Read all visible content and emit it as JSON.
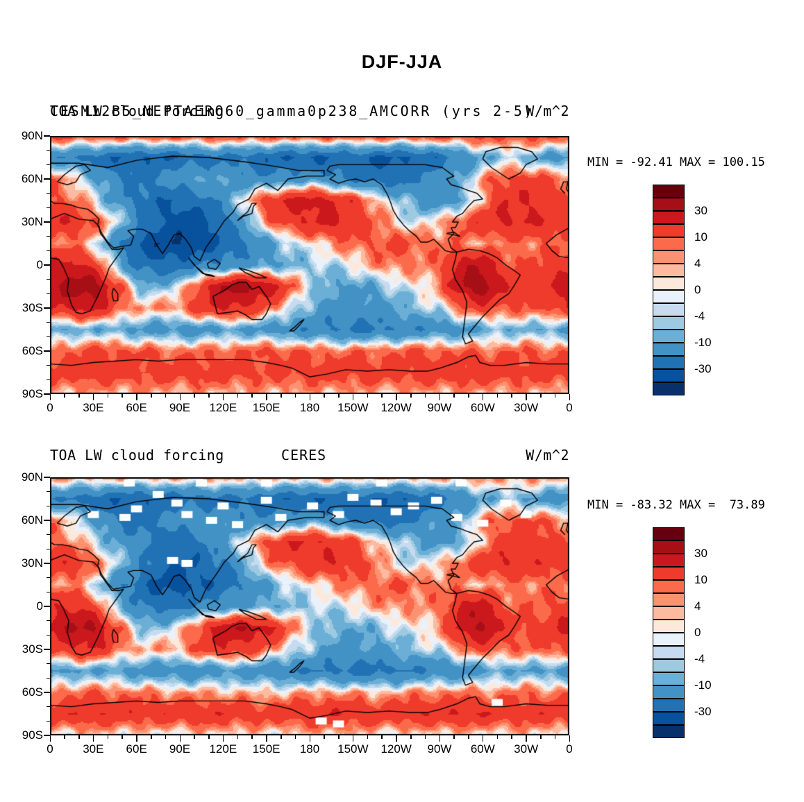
{
  "figure": {
    "title": "DJF-JJA"
  },
  "panels": [
    {
      "variable": "TOA LW cloud forcing",
      "case_title": "CESM12B5_NEPTAERO60_gamma0p238_AMCORR (yrs 2-5)",
      "units": "W/m^2",
      "stats": "MIN = -92.41 MAX = 100.15",
      "min": -92.41,
      "max": 100.15
    },
    {
      "variable": "TOA LW cloud forcing",
      "source": "CERES",
      "units": "W/m^2",
      "stats": "MIN = -83.32 MAX =  73.89",
      "min": -83.32,
      "max": 73.89
    }
  ],
  "axes": {
    "x_tick_labels": [
      "0",
      "30E",
      "60E",
      "90E",
      "120E",
      "150E",
      "180",
      "150W",
      "120W",
      "90W",
      "60W",
      "30W",
      "0"
    ],
    "y_tick_labels": [
      "90N",
      "60N",
      "30N",
      "0",
      "30S",
      "60S",
      "90S"
    ]
  },
  "colorbar": {
    "tick_labels": [
      "30",
      "10",
      "4",
      "0",
      "-4",
      "-10",
      "-30"
    ],
    "tick_boundary_indices": [
      2,
      4,
      6,
      8,
      10,
      12,
      14
    ],
    "levels": [
      -40,
      -30,
      -20,
      -10,
      -6,
      -4,
      -2,
      0,
      2,
      4,
      6,
      10,
      20,
      30,
      40
    ],
    "palette": [
      "#08306b",
      "#08519c",
      "#2171b5",
      "#4292c6",
      "#6baed6",
      "#9ecae1",
      "#c6dbef",
      "#e9f2fb",
      "#fde8dc",
      "#fcbba1",
      "#fc9272",
      "#fb6a4a",
      "#ef3b2c",
      "#cb181d",
      "#a50f15",
      "#67000d"
    ]
  },
  "chart_data": [
    {
      "type": "heatmap",
      "title": "CESM12B5_NEPTAERO60_gamma0p238_AMCORR (yrs 2-5)",
      "variable": "TOA LW cloud forcing",
      "season_difference": "DJF-JJA",
      "units": "W/m^2",
      "min": -92.41,
      "max": 100.15,
      "x_tick_labels": [
        "0",
        "30E",
        "60E",
        "90E",
        "120E",
        "150E",
        "180",
        "150W",
        "120W",
        "90W",
        "60W",
        "30W",
        "0"
      ],
      "y_tick_labels": [
        "90N",
        "60N",
        "30N",
        "0",
        "30S",
        "60S",
        "90S"
      ],
      "lat_rows": [
        90,
        75,
        60,
        45,
        30,
        15,
        0,
        -15,
        -30,
        -45,
        -60,
        -75,
        -90
      ],
      "lon_step_deg": 15,
      "levels": [
        -40,
        -30,
        -20,
        -10,
        -6,
        -4,
        -2,
        0,
        2,
        4,
        6,
        10,
        20,
        30,
        40
      ],
      "values_approx": [
        [
          12,
          12,
          12,
          12,
          12,
          12,
          12,
          12,
          12,
          12,
          12,
          12,
          12,
          12,
          12,
          12,
          12,
          12,
          12,
          12,
          12,
          12,
          12,
          12,
          12
        ],
        [
          -15,
          -20,
          -25,
          -28,
          -30,
          -30,
          -28,
          -25,
          -22,
          -25,
          -28,
          -30,
          -32,
          -30,
          -28,
          -30,
          -32,
          -30,
          -25,
          -18,
          -10,
          -5,
          -8,
          -12,
          -15
        ],
        [
          8,
          4,
          -8,
          -18,
          -22,
          -18,
          -12,
          -8,
          -12,
          -15,
          -18,
          -15,
          -12,
          -18,
          -22,
          -25,
          -25,
          -20,
          -15,
          -8,
          5,
          12,
          14,
          10,
          8
        ],
        [
          12,
          8,
          0,
          -12,
          -22,
          -28,
          -30,
          -25,
          -15,
          0,
          15,
          22,
          25,
          22,
          15,
          5,
          -5,
          -10,
          -18,
          -12,
          5,
          18,
          20,
          16,
          12
        ],
        [
          18,
          20,
          12,
          0,
          -15,
          -30,
          -35,
          -32,
          -25,
          -10,
          5,
          15,
          20,
          22,
          18,
          8,
          2,
          -4,
          4,
          12,
          18,
          22,
          20,
          18,
          18
        ],
        [
          8,
          6,
          0,
          -15,
          -30,
          -38,
          -40,
          -35,
          -30,
          -22,
          -12,
          -5,
          0,
          5,
          8,
          10,
          12,
          10,
          8,
          6,
          4,
          6,
          8,
          8,
          8
        ],
        [
          18,
          25,
          15,
          -5,
          -22,
          -28,
          -25,
          -20,
          -18,
          -15,
          -12,
          -8,
          -6,
          -4,
          0,
          5,
          8,
          5,
          8,
          25,
          30,
          12,
          10,
          12,
          18
        ],
        [
          28,
          35,
          38,
          15,
          -5,
          -8,
          -2,
          15,
          32,
          35,
          28,
          12,
          -2,
          -10,
          -12,
          -8,
          -4,
          0,
          6,
          30,
          38,
          20,
          15,
          18,
          28
        ],
        [
          18,
          22,
          24,
          12,
          5,
          5,
          8,
          15,
          22,
          18,
          10,
          0,
          -8,
          -14,
          -16,
          -14,
          -10,
          -6,
          -2,
          8,
          15,
          10,
          10,
          12,
          18
        ],
        [
          -12,
          -10,
          -8,
          -10,
          -12,
          -14,
          -15,
          -14,
          -12,
          -12,
          -14,
          -16,
          -18,
          -20,
          -22,
          -22,
          -20,
          -18,
          -16,
          -14,
          -10,
          -8,
          -8,
          -10,
          -12
        ],
        [
          8,
          10,
          12,
          12,
          10,
          9,
          8,
          8,
          9,
          10,
          11,
          10,
          9,
          8,
          8,
          9,
          10,
          11,
          10,
          9,
          8,
          9,
          10,
          9,
          8
        ],
        [
          14,
          15,
          16,
          15,
          14,
          13,
          14,
          15,
          14,
          13,
          12,
          13,
          14,
          15,
          14,
          13,
          14,
          15,
          16,
          17,
          16,
          15,
          14,
          14,
          14
        ],
        [
          3,
          3,
          3,
          3,
          3,
          3,
          3,
          3,
          3,
          3,
          3,
          3,
          3,
          3,
          3,
          3,
          3,
          3,
          3,
          3,
          3,
          3,
          3,
          3,
          3
        ]
      ]
    },
    {
      "type": "heatmap",
      "title": "CERES",
      "variable": "TOA LW cloud forcing",
      "season_difference": "DJF-JJA",
      "units": "W/m^2",
      "min": -83.32,
      "max": 73.89,
      "x_tick_labels": [
        "0",
        "30E",
        "60E",
        "90E",
        "120E",
        "150E",
        "180",
        "150W",
        "120W",
        "90W",
        "60W",
        "30W",
        "0"
      ],
      "y_tick_labels": [
        "90N",
        "60N",
        "30N",
        "0",
        "30S",
        "60S",
        "90S"
      ],
      "lat_rows": [
        90,
        75,
        60,
        45,
        30,
        15,
        0,
        -15,
        -30,
        -45,
        -60,
        -75,
        -90
      ],
      "lon_step_deg": 15,
      "levels": [
        -40,
        -30,
        -20,
        -10,
        -6,
        -4,
        -2,
        0,
        2,
        4,
        6,
        10,
        20,
        30,
        40
      ],
      "values_approx": [
        [
          6,
          6,
          6,
          6,
          6,
          6,
          6,
          6,
          6,
          6,
          6,
          6,
          6,
          6,
          6,
          6,
          6,
          6,
          6,
          6,
          6,
          6,
          6,
          6,
          6
        ],
        [
          -18,
          -22,
          -26,
          -28,
          -30,
          -28,
          -26,
          -24,
          -22,
          -24,
          -26,
          -28,
          -30,
          -28,
          -26,
          -28,
          -30,
          -28,
          -24,
          -18,
          -10,
          -6,
          -10,
          -14,
          -18
        ],
        [
          6,
          2,
          -10,
          -20,
          -24,
          -20,
          -14,
          -10,
          -14,
          -16,
          -18,
          -14,
          -10,
          -16,
          -20,
          -24,
          -24,
          -18,
          -12,
          -6,
          6,
          10,
          12,
          8,
          6
        ],
        [
          10,
          6,
          -2,
          -10,
          -18,
          -24,
          -26,
          -22,
          -12,
          0,
          12,
          18,
          20,
          18,
          12,
          4,
          -4,
          -8,
          -14,
          -10,
          4,
          14,
          16,
          13,
          10
        ],
        [
          16,
          18,
          10,
          -2,
          -14,
          -26,
          -30,
          -28,
          -22,
          -8,
          4,
          12,
          16,
          18,
          15,
          6,
          0,
          -4,
          3,
          10,
          16,
          20,
          18,
          16,
          16
        ],
        [
          6,
          5,
          -2,
          -14,
          -26,
          -33,
          -35,
          -30,
          -26,
          -18,
          -10,
          -4,
          0,
          4,
          7,
          9,
          10,
          9,
          7,
          5,
          3,
          5,
          7,
          7,
          6
        ],
        [
          15,
          22,
          12,
          -4,
          -18,
          -24,
          -22,
          -18,
          -15,
          -12,
          -10,
          -7,
          -5,
          -3,
          0,
          4,
          7,
          4,
          7,
          22,
          27,
          10,
          8,
          10,
          15
        ],
        [
          24,
          30,
          33,
          12,
          -4,
          -6,
          0,
          13,
          28,
          30,
          24,
          10,
          -2,
          -8,
          -10,
          -7,
          -3,
          0,
          5,
          26,
          33,
          17,
          13,
          15,
          24
        ],
        [
          14,
          18,
          20,
          10,
          4,
          4,
          6,
          12,
          18,
          15,
          8,
          0,
          -6,
          -12,
          -13,
          -12,
          -8,
          -5,
          -2,
          6,
          12,
          8,
          8,
          10,
          14
        ],
        [
          -14,
          -12,
          -10,
          -12,
          -14,
          -16,
          -17,
          -16,
          -14,
          -14,
          -16,
          -18,
          -20,
          -22,
          -24,
          -24,
          -22,
          -20,
          -18,
          -16,
          -12,
          -10,
          -10,
          -12,
          -14
        ],
        [
          7,
          8,
          9,
          8,
          7,
          6,
          5,
          4,
          4,
          3,
          2,
          3,
          4,
          5,
          4,
          3,
          4,
          6,
          7,
          7,
          6,
          7,
          8,
          7,
          7
        ],
        [
          17,
          18,
          19,
          18,
          17,
          16,
          17,
          18,
          17,
          16,
          15,
          16,
          18,
          19,
          18,
          16,
          17,
          18,
          19,
          20,
          19,
          17,
          16,
          16,
          17
        ],
        [
          -1,
          0,
          1,
          0,
          -1,
          -2,
          -1,
          0,
          1,
          0,
          -1,
          0,
          1,
          2,
          1,
          0,
          -1,
          0,
          1,
          0,
          -1,
          0,
          1,
          0,
          -1
        ]
      ],
      "missing_data_cells_lon_lat": [
        [
          30,
          64
        ],
        [
          52,
          62
        ],
        [
          60,
          68
        ],
        [
          75,
          78
        ],
        [
          88,
          72
        ],
        [
          95,
          64
        ],
        [
          112,
          60
        ],
        [
          120,
          70
        ],
        [
          130,
          57
        ],
        [
          150,
          74
        ],
        [
          160,
          62
        ],
        [
          182,
          70
        ],
        [
          200,
          64
        ],
        [
          210,
          76
        ],
        [
          226,
          72
        ],
        [
          240,
          66
        ],
        [
          252,
          70
        ],
        [
          268,
          74
        ],
        [
          282,
          62
        ],
        [
          300,
          58
        ],
        [
          316,
          72
        ],
        [
          330,
          64
        ],
        [
          85,
          32
        ],
        [
          95,
          30
        ],
        [
          55,
          86
        ],
        [
          105,
          86
        ],
        [
          150,
          86
        ],
        [
          230,
          86
        ],
        [
          285,
          86
        ],
        [
          188,
          -80
        ],
        [
          200,
          -82
        ],
        [
          310,
          -67
        ]
      ]
    }
  ]
}
